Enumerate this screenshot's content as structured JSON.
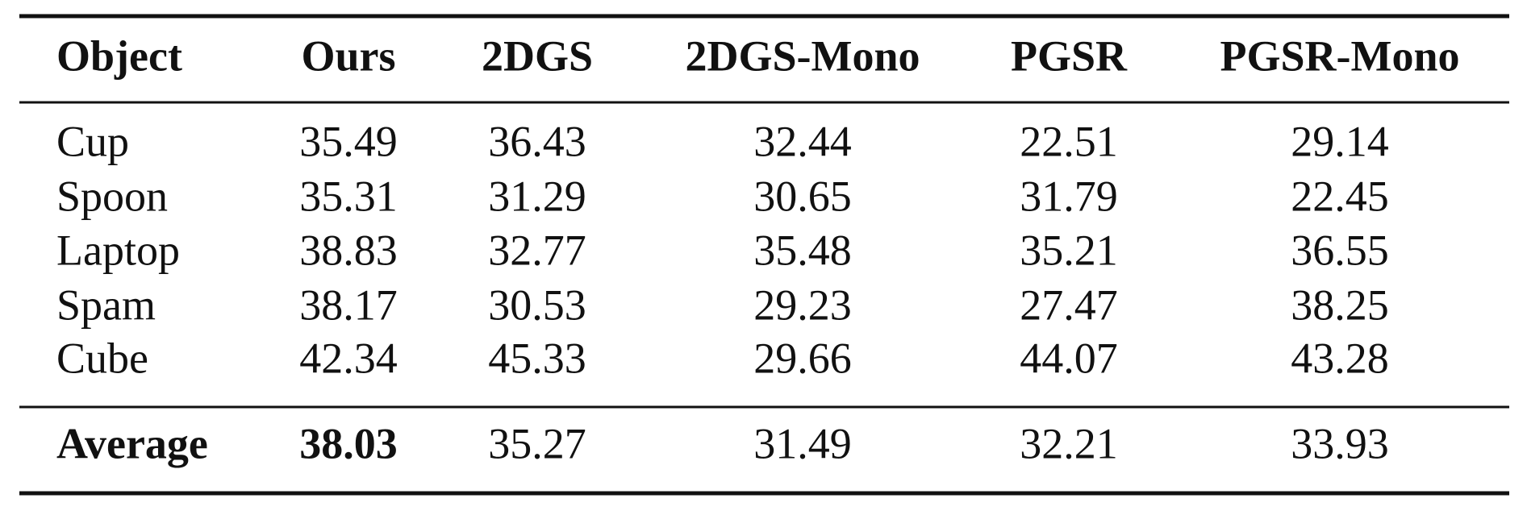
{
  "table": {
    "header": [
      "Object",
      "Ours",
      "2DGS",
      "2DGS-Mono",
      "PGSR",
      "PGSR-Mono"
    ],
    "rows": [
      [
        "Cup",
        35.49,
        36.43,
        32.44,
        22.51,
        29.14
      ],
      [
        "Spoon",
        35.31,
        31.29,
        30.65,
        31.79,
        22.45
      ],
      [
        "Laptop",
        38.83,
        32.77,
        35.48,
        35.21,
        36.55
      ],
      [
        "Spam",
        38.17,
        30.53,
        29.23,
        27.47,
        38.25
      ],
      [
        "Cube",
        42.34,
        45.33,
        29.66,
        44.07,
        43.28
      ]
    ],
    "average": [
      "Average",
      38.03,
      35.27,
      31.49,
      32.21,
      33.93
    ]
  }
}
